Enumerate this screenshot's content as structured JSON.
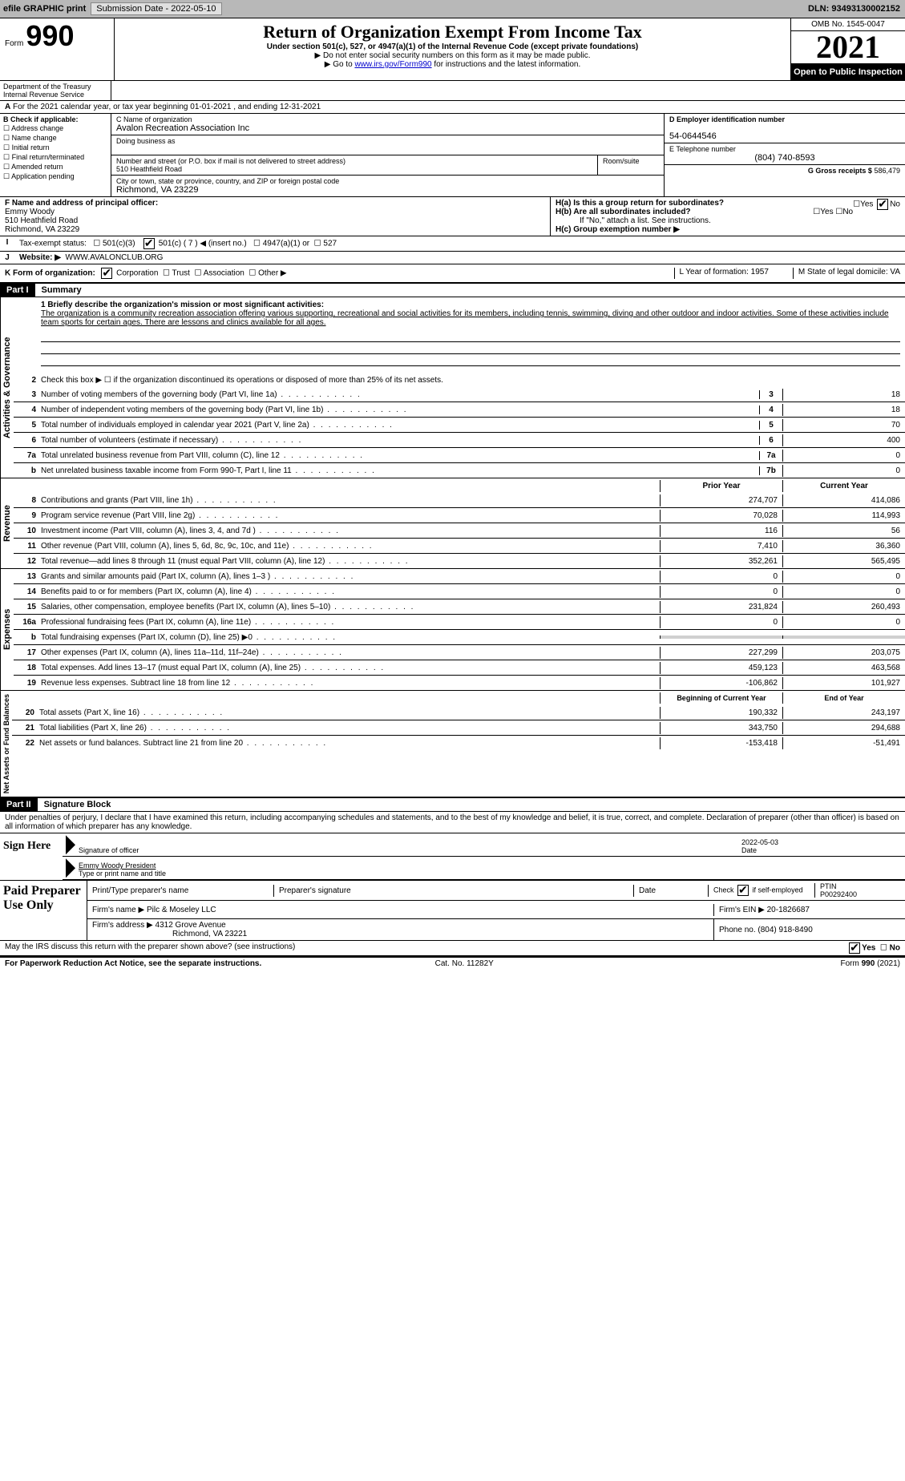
{
  "top_bar": {
    "efile": "efile GRAPHIC print",
    "submission": "Submission Date - 2022-05-10",
    "dln": "DLN: 93493130002152"
  },
  "header": {
    "form_label": "Form",
    "form_number": "990",
    "title": "Return of Organization Exempt From Income Tax",
    "subtitle": "Under section 501(c), 527, or 4947(a)(1) of the Internal Revenue Code (except private foundations)",
    "line1": "▶ Do not enter social security numbers on this form as it may be made public.",
    "line2_pre": "▶ Go to ",
    "line2_link": "www.irs.gov/Form990",
    "line2_post": " for instructions and the latest information.",
    "omb": "OMB No. 1545-0047",
    "year": "2021",
    "open": "Open to Public Inspection",
    "dept": "Department of the Treasury",
    "irs": "Internal Revenue Service"
  },
  "section_a": "For the 2021 calendar year, or tax year beginning 01-01-2021   , and ending 12-31-2021",
  "col_b": {
    "header": "B Check if applicable:",
    "items": [
      "Address change",
      "Name change",
      "Initial return",
      "Final return/terminated",
      "Amended return",
      "Application pending"
    ]
  },
  "col_c": {
    "name_label": "C Name of organization",
    "name": "Avalon Recreation Association Inc",
    "dba_label": "Doing business as",
    "addr_label": "Number and street (or P.O. box if mail is not delivered to street address)",
    "addr": "510 Heathfield Road",
    "room_label": "Room/suite",
    "city_label": "City or town, state or province, country, and ZIP or foreign postal code",
    "city": "Richmond, VA  23229"
  },
  "col_d": {
    "label": "D Employer identification number",
    "value": "54-0644546",
    "e_label": "E Telephone number",
    "e_value": "(804) 740-8593",
    "g_label": "G Gross receipts $",
    "g_value": "586,479"
  },
  "row_f": {
    "label": "F Name and address of principal officer:",
    "name": "Emmy Woody",
    "addr1": "510 Heathfield Road",
    "addr2": "Richmond, VA  23229",
    "ha": "H(a)  Is this a group return for subordinates?",
    "ha_yes": "Yes",
    "ha_no": "No",
    "hb": "H(b)  Are all subordinates included?",
    "hb_yes": "Yes",
    "hb_no": "No",
    "hb_note": "If \"No,\" attach a list. See instructions.",
    "hc": "H(c)  Group exemption number ▶"
  },
  "row_i": {
    "label": "Tax-exempt status:",
    "opt1": "501(c)(3)",
    "opt2": "501(c) ( 7 ) ◀ (insert no.)",
    "opt3": "4947(a)(1) or",
    "opt4": "527"
  },
  "row_j": {
    "label": "Website: ▶",
    "value": "WWW.AVALONCLUB.ORG"
  },
  "row_k": {
    "label": "K Form of organization:",
    "opts": [
      "Corporation",
      "Trust",
      "Association",
      "Other ▶"
    ],
    "l": "L Year of formation: 1957",
    "m": "M State of legal domicile: VA"
  },
  "part1": {
    "header": "Part I",
    "title": "Summary",
    "q1": "1 Briefly describe the organization's mission or most significant activities:",
    "mission": "The organization is a community recreation association offering various supporting, recreational and social activities for its members, including tennis, swimming, diving and other outdoor and indoor activities. Some of these activities include team sports for certain ages. There are lessons and clinics available for all ages.",
    "q2": "Check this box ▶ ☐ if the organization discontinued its operations or disposed of more than 25% of its net assets.",
    "lines_gov": [
      {
        "n": "3",
        "t": "Number of voting members of the governing body (Part VI, line 1a)",
        "cn": "3",
        "v": "18"
      },
      {
        "n": "4",
        "t": "Number of independent voting members of the governing body (Part VI, line 1b)",
        "cn": "4",
        "v": "18"
      },
      {
        "n": "5",
        "t": "Total number of individuals employed in calendar year 2021 (Part V, line 2a)",
        "cn": "5",
        "v": "70"
      },
      {
        "n": "6",
        "t": "Total number of volunteers (estimate if necessary)",
        "cn": "6",
        "v": "400"
      },
      {
        "n": "7a",
        "t": "Total unrelated business revenue from Part VIII, column (C), line 12",
        "cn": "7a",
        "v": "0"
      },
      {
        "n": "b",
        "t": "Net unrelated business taxable income from Form 990-T, Part I, line 11",
        "cn": "7b",
        "v": "0"
      }
    ],
    "col_headers": {
      "prior": "Prior Year",
      "current": "Current Year"
    },
    "revenue": [
      {
        "n": "8",
        "t": "Contributions and grants (Part VIII, line 1h)",
        "p": "274,707",
        "c": "414,086"
      },
      {
        "n": "9",
        "t": "Program service revenue (Part VIII, line 2g)",
        "p": "70,028",
        "c": "114,993"
      },
      {
        "n": "10",
        "t": "Investment income (Part VIII, column (A), lines 3, 4, and 7d )",
        "p": "116",
        "c": "56"
      },
      {
        "n": "11",
        "t": "Other revenue (Part VIII, column (A), lines 5, 6d, 8c, 9c, 10c, and 11e)",
        "p": "7,410",
        "c": "36,360"
      },
      {
        "n": "12",
        "t": "Total revenue—add lines 8 through 11 (must equal Part VIII, column (A), line 12)",
        "p": "352,261",
        "c": "565,495"
      }
    ],
    "expenses": [
      {
        "n": "13",
        "t": "Grants and similar amounts paid (Part IX, column (A), lines 1–3 )",
        "p": "0",
        "c": "0"
      },
      {
        "n": "14",
        "t": "Benefits paid to or for members (Part IX, column (A), line 4)",
        "p": "0",
        "c": "0"
      },
      {
        "n": "15",
        "t": "Salaries, other compensation, employee benefits (Part IX, column (A), lines 5–10)",
        "p": "231,824",
        "c": "260,493"
      },
      {
        "n": "16a",
        "t": "Professional fundraising fees (Part IX, column (A), line 11e)",
        "p": "0",
        "c": "0"
      },
      {
        "n": "b",
        "t": "Total fundraising expenses (Part IX, column (D), line 25) ▶0",
        "p": "",
        "c": "",
        "grey": true
      },
      {
        "n": "17",
        "t": "Other expenses (Part IX, column (A), lines 11a–11d, 11f–24e)",
        "p": "227,299",
        "c": "203,075"
      },
      {
        "n": "18",
        "t": "Total expenses. Add lines 13–17 (must equal Part IX, column (A), line 25)",
        "p": "459,123",
        "c": "463,568"
      },
      {
        "n": "19",
        "t": "Revenue less expenses. Subtract line 18 from line 12",
        "p": "-106,862",
        "c": "101,927"
      }
    ],
    "net_headers": {
      "begin": "Beginning of Current Year",
      "end": "End of Year"
    },
    "net": [
      {
        "n": "20",
        "t": "Total assets (Part X, line 16)",
        "p": "190,332",
        "c": "243,197"
      },
      {
        "n": "21",
        "t": "Total liabilities (Part X, line 26)",
        "p": "343,750",
        "c": "294,688"
      },
      {
        "n": "22",
        "t": "Net assets or fund balances. Subtract line 21 from line 20",
        "p": "-153,418",
        "c": "-51,491"
      }
    ]
  },
  "vert_labels": {
    "gov": "Activities & Governance",
    "rev": "Revenue",
    "exp": "Expenses",
    "net": "Net Assets or Fund Balances"
  },
  "part2": {
    "header": "Part II",
    "title": "Signature Block",
    "penalty": "Under penalties of perjury, I declare that I have examined this return, including accompanying schedules and statements, and to the best of my knowledge and belief, it is true, correct, and complete. Declaration of preparer (other than officer) is based on all information of which preparer has any knowledge.",
    "sign_here": "Sign Here",
    "sig_officer": "Signature of officer",
    "date": "Date",
    "date_val": "2022-05-03",
    "name_title": "Emmy Woody  President",
    "name_title_label": "Type or print name and title"
  },
  "paid": {
    "header": "Paid Preparer Use Only",
    "r1": {
      "c1": "Print/Type preparer's name",
      "c2": "Preparer's signature",
      "c3": "Date",
      "c4_pre": "Check",
      "c4_post": "if self-employed",
      "c5": "PTIN",
      "c5v": "P00292400"
    },
    "r2": {
      "c1": "Firm's name    ▶",
      "c1v": "Pilc & Moseley LLC",
      "c2": "Firm's EIN ▶",
      "c2v": "20-1826687"
    },
    "r3": {
      "c1": "Firm's address ▶",
      "c1v": "4312 Grove Avenue",
      "c1v2": "Richmond, VA  23221",
      "c2": "Phone no.",
      "c2v": "(804) 918-8490"
    }
  },
  "footer": {
    "discuss": "May the IRS discuss this return with the preparer shown above? (see instructions)",
    "yes": "Yes",
    "no": "No",
    "paperwork": "For Paperwork Reduction Act Notice, see the separate instructions.",
    "cat": "Cat. No. 11282Y",
    "form": "Form 990 (2021)"
  }
}
